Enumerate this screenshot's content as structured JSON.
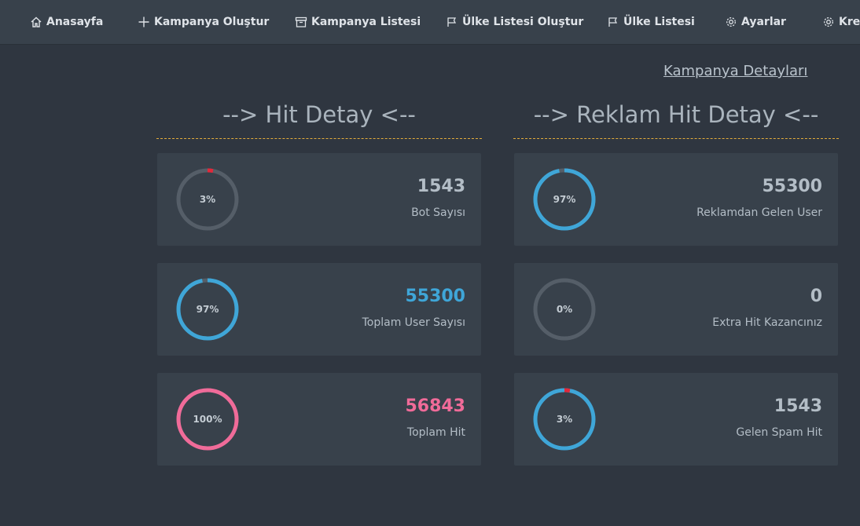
{
  "nav": {
    "items": [
      {
        "label": "Anasayfa",
        "icon": "home-icon"
      },
      {
        "label": "Kampanya Oluştur",
        "icon": "plus-icon"
      },
      {
        "label": "Kampanya Listesi",
        "icon": "archive-icon"
      },
      {
        "label": "Ülke Listesi Oluştur",
        "icon": "flag-icon"
      },
      {
        "label": "Ülke Listesi",
        "icon": "flag-icon"
      },
      {
        "label": "Ayarlar",
        "icon": "gear-icon"
      },
      {
        "label": "Kredi",
        "icon": "gear-icon"
      }
    ]
  },
  "detail_link": "Kampanya Detayları",
  "hit_section": {
    "title": "--> Hit Detay <--",
    "cards": [
      {
        "percent": 3,
        "percent_label": "3%",
        "value": "1543",
        "label": "Bot Sayısı",
        "ring_color": "#3a9fd5",
        "track_color": "#555e68",
        "accent_color": "#e2283a",
        "value_color": "#b3bdc6",
        "fill_mode": "accent"
      },
      {
        "percent": 97,
        "percent_label": "97%",
        "value": "55300",
        "label": "Toplam User Sayısı",
        "ring_color": "#3fa6d8",
        "track_color": "#555e68",
        "value_color": "#3fa6d8",
        "fill_mode": "main"
      },
      {
        "percent": 100,
        "percent_label": "100%",
        "value": "56843",
        "label": "Toplam Hit",
        "ring_color": "#f06b99",
        "track_color": "#555e68",
        "value_color": "#f06b99",
        "fill_mode": "main"
      }
    ]
  },
  "ad_section": {
    "title": "--> Reklam Hit Detay <--",
    "cards": [
      {
        "percent": 97,
        "percent_label": "97%",
        "value": "55300",
        "label": "Reklamdan Gelen User",
        "ring_color": "#3fa6d8",
        "track_color": "#555e68",
        "value_color": "#b3bdc6",
        "fill_mode": "main"
      },
      {
        "percent": 0,
        "percent_label": "0%",
        "value": "0",
        "label": "Extra Hit Kazancınız",
        "ring_color": "#3fa6d8",
        "track_color": "#555e68",
        "value_color": "#b3bdc6",
        "fill_mode": "main"
      },
      {
        "percent": 3,
        "percent_label": "3%",
        "value": "1543",
        "label": "Gelen Spam Hit",
        "ring_color": "#3fa6d8",
        "track_color": "#3fa6d8",
        "accent_color": "#e2283a",
        "value_color": "#b3bdc6",
        "fill_mode": "accent"
      }
    ]
  }
}
